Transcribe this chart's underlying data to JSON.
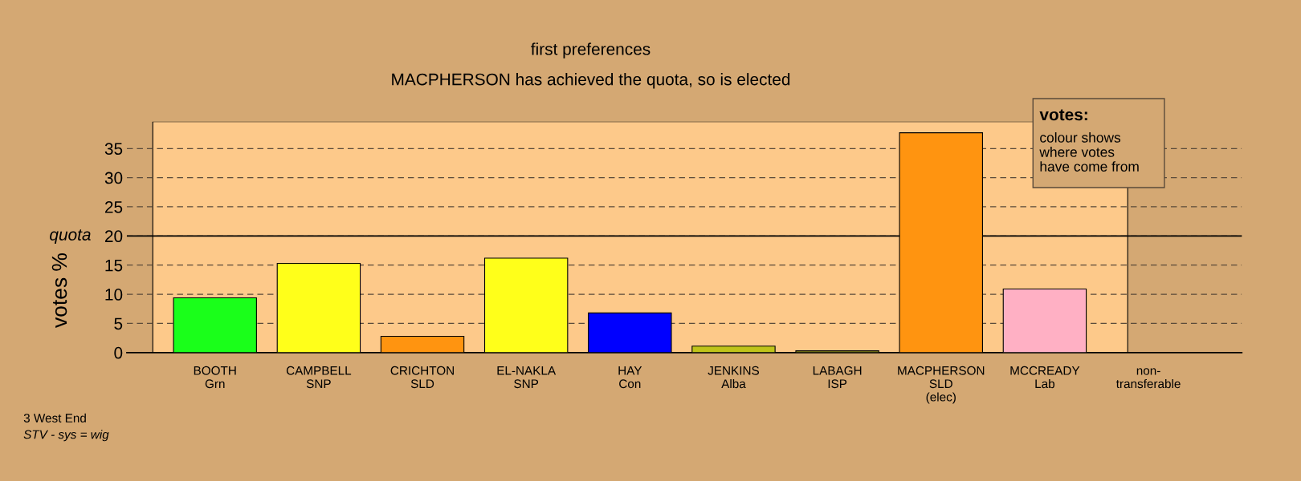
{
  "chart_data": {
    "type": "bar",
    "title": "first preferences",
    "subtitle": "MACPHERSON has achieved the quota, so is elected",
    "ylabel": "votes %",
    "categories": [
      "BOOTH\nGrn",
      "CAMPBELL\nSNP",
      "CRICHTON\nSLD",
      "EL-NAKLA\nSNP",
      "HAY\nCon",
      "JENKINS\nAlba",
      "LABAGH\nISP",
      "MACPHERSON\nSLD\n(elec)",
      "MCCREADY\nLab",
      "non-\ntransferable"
    ],
    "values": [
      9.4,
      15.3,
      2.8,
      16.2,
      6.8,
      1.1,
      0.3,
      37.7,
      10.9,
      null
    ],
    "colors": [
      "#1aff1a",
      "#ffff1a",
      "#ff9410",
      "#ffff1a",
      "#0000ff",
      "#bfc41a",
      "#8b8b1a",
      "#ff9410",
      "#ffb0c4",
      "#ffffff"
    ],
    "ylim": [
      0,
      39.6
    ],
    "yticks": [
      0,
      5,
      10,
      15,
      20,
      25,
      30,
      35
    ],
    "grid": "y",
    "ref_lines": [
      {
        "axis": "y",
        "value": 20,
        "label": "quota"
      }
    ],
    "annotations": [
      "votes:\ncolour shows\nwhere votes\nhave come from",
      "3 West End",
      "STV - sys = wig"
    ]
  }
}
